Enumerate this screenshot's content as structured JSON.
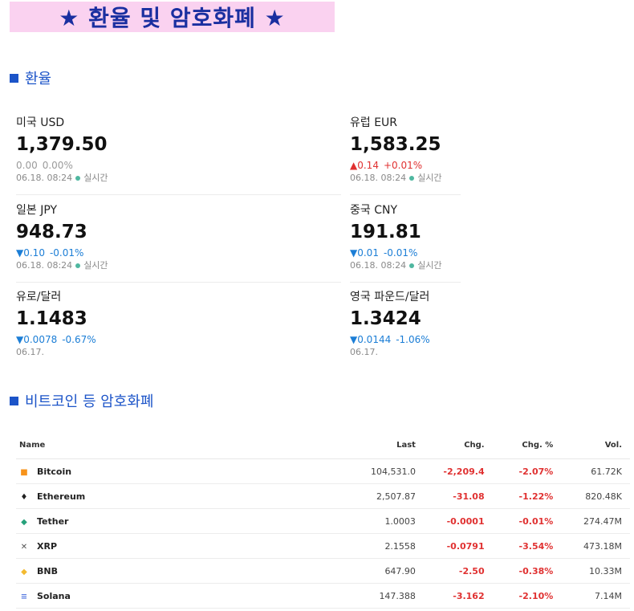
{
  "banner": {
    "title": "★ 환율 및 암호화폐 ★"
  },
  "fx_section": {
    "title": "환율"
  },
  "fx": [
    {
      "name": "미국 USD",
      "price": "1,379.50",
      "dir": "flat",
      "change": "0.00",
      "pct": "0.00%",
      "time": "06.18. 08:24",
      "live": "실시간"
    },
    {
      "name": "유럽 EUR",
      "price": "1,583.25",
      "dir": "up",
      "change": "▲0.14",
      "pct": "+0.01%",
      "time": "06.18. 08:24",
      "live": "실시간"
    },
    {
      "name": "일본 JPY",
      "price": "948.73",
      "dir": "down",
      "change": "▼0.10",
      "pct": "-0.01%",
      "time": "06.18. 08:24",
      "live": "실시간"
    },
    {
      "name": "중국 CNY",
      "price": "191.81",
      "dir": "down",
      "change": "▼0.01",
      "pct": "-0.01%",
      "time": "06.18. 08:24",
      "live": "실시간"
    },
    {
      "name": "유로/달러",
      "price": "1.1483",
      "dir": "down",
      "change": "▼0.0078",
      "pct": "-0.67%",
      "time": "06.17.",
      "live": ""
    },
    {
      "name": "영국 파운드/달러",
      "price": "1.3424",
      "dir": "down",
      "change": "▼0.0144",
      "pct": "-1.06%",
      "time": "06.17.",
      "live": ""
    }
  ],
  "crypto_section": {
    "title": "비트코인 등 암호화폐"
  },
  "crypto_table": {
    "headers": [
      "Name",
      "Last",
      "Chg.",
      "Chg. %",
      "Vol."
    ],
    "rows": [
      {
        "name": "Bitcoin",
        "icon": "bitcoin-icon",
        "icon_glyph": "■",
        "icon_color": "#f7931a",
        "last": "104,531.0",
        "chg": "-2,209.4",
        "pct": "-2.07%",
        "vol": "61.72K"
      },
      {
        "name": "Ethereum",
        "icon": "ethereum-icon",
        "icon_glyph": "♦",
        "icon_color": "#222222",
        "last": "2,507.87",
        "chg": "-31.08",
        "pct": "-1.22%",
        "vol": "820.48K"
      },
      {
        "name": "Tether",
        "icon": "tether-icon",
        "icon_glyph": "◆",
        "icon_color": "#26a17b",
        "last": "1.0003",
        "chg": "-0.0001",
        "pct": "-0.01%",
        "vol": "274.47M"
      },
      {
        "name": "XRP",
        "icon": "xrp-icon",
        "icon_glyph": "✕",
        "icon_color": "#555555",
        "last": "2.1558",
        "chg": "-0.0791",
        "pct": "-3.54%",
        "vol": "473.18M"
      },
      {
        "name": "BNB",
        "icon": "bnb-icon",
        "icon_glyph": "◆",
        "icon_color": "#f3ba2f",
        "last": "647.90",
        "chg": "-2.50",
        "pct": "-0.38%",
        "vol": "10.33M"
      },
      {
        "name": "Solana",
        "icon": "solana-icon",
        "icon_glyph": "≡",
        "icon_color": "#5a7be0",
        "last": "147.388",
        "chg": "-3.162",
        "pct": "-2.10%",
        "vol": "7.14M"
      }
    ]
  }
}
